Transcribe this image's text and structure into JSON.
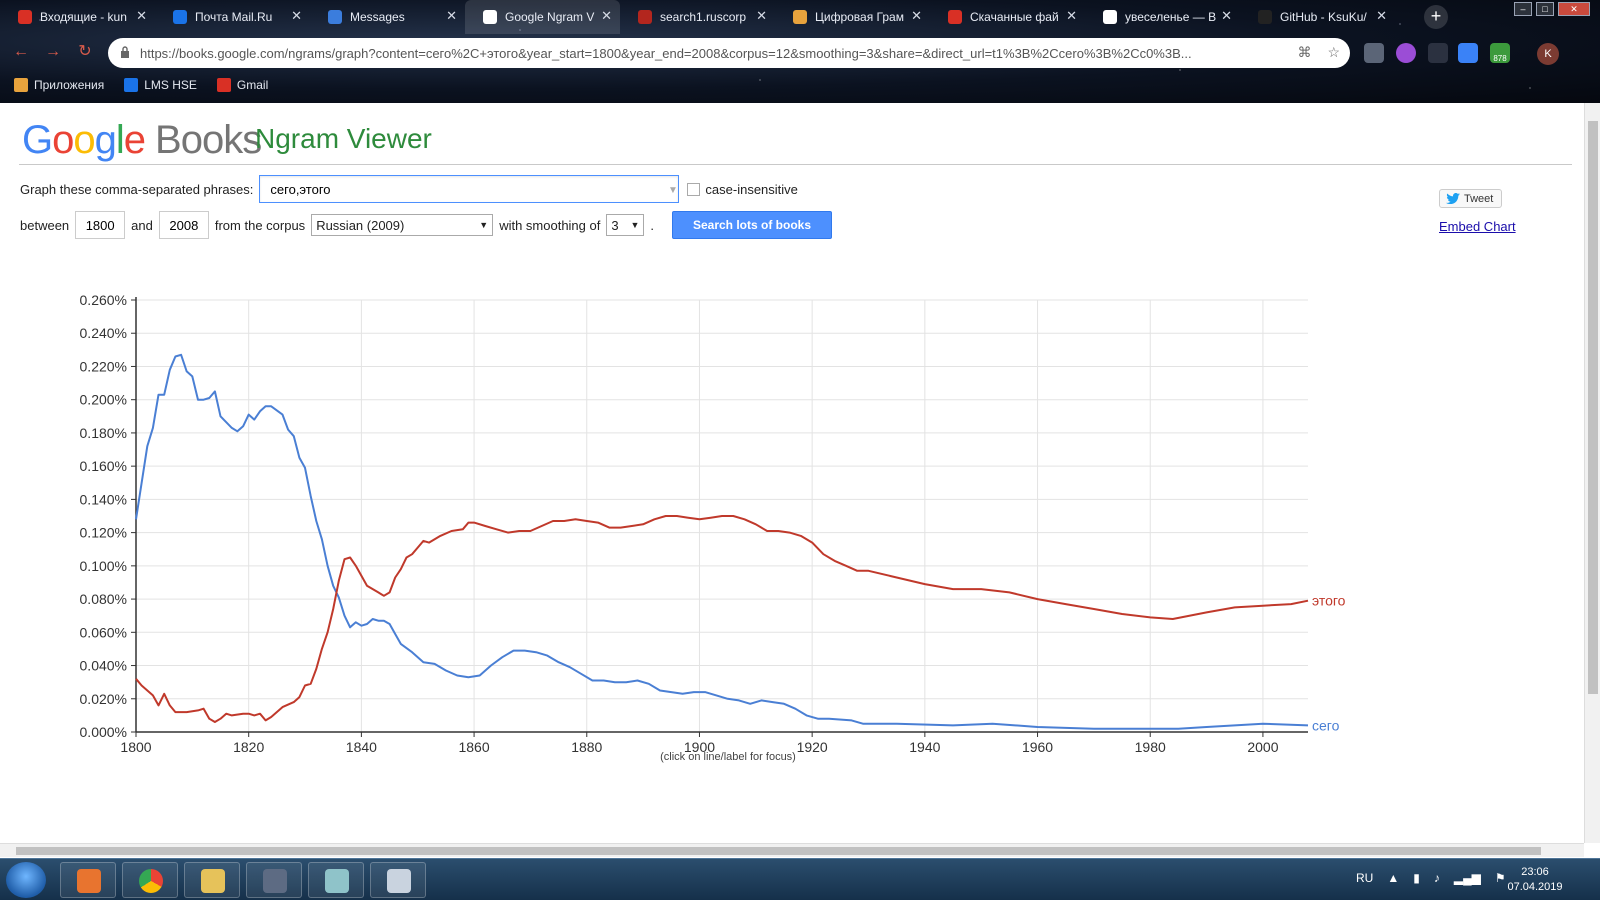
{
  "browser": {
    "tabs": [
      {
        "label": "Входящие - kun",
        "color": "#d93025"
      },
      {
        "label": "Почта Mail.Ru",
        "color": "#1a73e8"
      },
      {
        "label": "Messages",
        "color": "#3b7ddd"
      },
      {
        "label": "Google Ngram V",
        "color": "#ffffff",
        "active": true
      },
      {
        "label": "search1.ruscorp",
        "color": "#b3261e"
      },
      {
        "label": "Цифровая Грам",
        "color": "#e8a33d"
      },
      {
        "label": "Скачанные фай",
        "color": "#d93025"
      },
      {
        "label": "увеселенье — В",
        "color": "#ffffff"
      },
      {
        "label": "GitHub - KsuKu/",
        "color": "#222222"
      }
    ],
    "url": "https://books.google.com/ngrams/graph?content=сего%2C+этого&year_start=1800&year_end=2008&corpus=12&smoothing=3&share=&direct_url=t1%3B%2Ccero%3B%2Cc0%3B...",
    "bookmarks": [
      {
        "label": "Приложения",
        "color": "#e8a33d"
      },
      {
        "label": "LMS HSE",
        "color": "#1a73e8"
      },
      {
        "label": "Gmail",
        "color": "#d93025"
      }
    ],
    "avatar_letter": "K",
    "badge": "878"
  },
  "header": {
    "logo_google": [
      "G",
      "o",
      "o",
      "g",
      "l",
      "e"
    ],
    "logo_books": "Books",
    "title": "Ngram Viewer"
  },
  "form": {
    "phrases_label": "Graph these comma-separated phrases:",
    "phrases_value": "сего,этого",
    "case_label": "case-insensitive",
    "between_label": "between",
    "year_start": "1800",
    "and_label": "and",
    "year_end": "2008",
    "corpus_label": "from the corpus",
    "corpus_value": "Russian (2009)",
    "smoothing_label": "with smoothing of",
    "smoothing_value": "3",
    "search_button": "Search lots of books"
  },
  "side": {
    "tweet": "Tweet",
    "embed": "Embed Chart"
  },
  "chart_caption": "(click on line/label for focus)",
  "chart_data": {
    "type": "line",
    "x_range": [
      1800,
      2008
    ],
    "ylim": [
      0,
      0.26
    ],
    "y_ticks": [
      "0.000%",
      "0.020%",
      "0.040%",
      "0.060%",
      "0.080%",
      "0.100%",
      "0.120%",
      "0.140%",
      "0.160%",
      "0.180%",
      "0.200%",
      "0.220%",
      "0.240%",
      "0.260%"
    ],
    "x_ticks": [
      "1800",
      "1820",
      "1840",
      "1860",
      "1880",
      "1900",
      "1920",
      "1940",
      "1960",
      "1980",
      "2000"
    ],
    "grid": true,
    "series": [
      {
        "name": "сего",
        "color": "#4a7fd4",
        "points": [
          [
            1800,
            0.128
          ],
          [
            1802,
            0.172
          ],
          [
            1803,
            0.183
          ],
          [
            1804,
            0.203
          ],
          [
            1805,
            0.203
          ],
          [
            1806,
            0.218
          ],
          [
            1807,
            0.226
          ],
          [
            1808,
            0.227
          ],
          [
            1809,
            0.217
          ],
          [
            1810,
            0.214
          ],
          [
            1811,
            0.2
          ],
          [
            1812,
            0.2
          ],
          [
            1813,
            0.201
          ],
          [
            1814,
            0.205
          ],
          [
            1815,
            0.19
          ],
          [
            1817,
            0.183
          ],
          [
            1818,
            0.181
          ],
          [
            1819,
            0.184
          ],
          [
            1820,
            0.191
          ],
          [
            1821,
            0.188
          ],
          [
            1822,
            0.193
          ],
          [
            1823,
            0.196
          ],
          [
            1824,
            0.196
          ],
          [
            1826,
            0.191
          ],
          [
            1827,
            0.182
          ],
          [
            1828,
            0.178
          ],
          [
            1829,
            0.165
          ],
          [
            1830,
            0.159
          ],
          [
            1831,
            0.142
          ],
          [
            1832,
            0.127
          ],
          [
            1833,
            0.116
          ],
          [
            1834,
            0.1
          ],
          [
            1835,
            0.088
          ],
          [
            1836,
            0.081
          ],
          [
            1837,
            0.07
          ],
          [
            1838,
            0.063
          ],
          [
            1839,
            0.066
          ],
          [
            1840,
            0.064
          ],
          [
            1841,
            0.065
          ],
          [
            1842,
            0.068
          ],
          [
            1843,
            0.067
          ],
          [
            1844,
            0.067
          ],
          [
            1845,
            0.065
          ],
          [
            1846,
            0.059
          ],
          [
            1847,
            0.053
          ],
          [
            1849,
            0.048
          ],
          [
            1851,
            0.042
          ],
          [
            1853,
            0.041
          ],
          [
            1855,
            0.037
          ],
          [
            1857,
            0.034
          ],
          [
            1859,
            0.033
          ],
          [
            1861,
            0.034
          ],
          [
            1863,
            0.04
          ],
          [
            1865,
            0.045
          ],
          [
            1867,
            0.049
          ],
          [
            1869,
            0.049
          ],
          [
            1871,
            0.048
          ],
          [
            1873,
            0.046
          ],
          [
            1875,
            0.042
          ],
          [
            1877,
            0.039
          ],
          [
            1879,
            0.035
          ],
          [
            1881,
            0.031
          ],
          [
            1883,
            0.031
          ],
          [
            1885,
            0.03
          ],
          [
            1887,
            0.03
          ],
          [
            1889,
            0.031
          ],
          [
            1891,
            0.029
          ],
          [
            1893,
            0.025
          ],
          [
            1895,
            0.024
          ],
          [
            1897,
            0.023
          ],
          [
            1899,
            0.024
          ],
          [
            1901,
            0.024
          ],
          [
            1903,
            0.022
          ],
          [
            1905,
            0.02
          ],
          [
            1907,
            0.019
          ],
          [
            1909,
            0.017
          ],
          [
            1911,
            0.019
          ],
          [
            1913,
            0.018
          ],
          [
            1915,
            0.017
          ],
          [
            1917,
            0.014
          ],
          [
            1919,
            0.01
          ],
          [
            1921,
            0.008
          ],
          [
            1923,
            0.008
          ],
          [
            1927,
            0.007
          ],
          [
            1929,
            0.005
          ],
          [
            1935,
            0.005
          ],
          [
            1945,
            0.004
          ],
          [
            1952,
            0.005
          ],
          [
            1960,
            0.003
          ],
          [
            1970,
            0.002
          ],
          [
            1985,
            0.002
          ],
          [
            1990,
            0.003
          ],
          [
            2000,
            0.005
          ],
          [
            2008,
            0.004
          ]
        ]
      },
      {
        "name": "этого",
        "color": "#c0392b",
        "points": [
          [
            1800,
            0.032
          ],
          [
            1801,
            0.028
          ],
          [
            1803,
            0.022
          ],
          [
            1804,
            0.016
          ],
          [
            1805,
            0.023
          ],
          [
            1806,
            0.016
          ],
          [
            1807,
            0.012
          ],
          [
            1809,
            0.012
          ],
          [
            1811,
            0.013
          ],
          [
            1812,
            0.014
          ],
          [
            1813,
            0.008
          ],
          [
            1814,
            0.006
          ],
          [
            1815,
            0.008
          ],
          [
            1816,
            0.011
          ],
          [
            1817,
            0.01
          ],
          [
            1819,
            0.011
          ],
          [
            1820,
            0.011
          ],
          [
            1821,
            0.01
          ],
          [
            1822,
            0.011
          ],
          [
            1823,
            0.007
          ],
          [
            1824,
            0.009
          ],
          [
            1826,
            0.015
          ],
          [
            1828,
            0.018
          ],
          [
            1829,
            0.021
          ],
          [
            1830,
            0.028
          ],
          [
            1831,
            0.029
          ],
          [
            1832,
            0.038
          ],
          [
            1833,
            0.05
          ],
          [
            1834,
            0.06
          ],
          [
            1835,
            0.074
          ],
          [
            1836,
            0.091
          ],
          [
            1837,
            0.104
          ],
          [
            1838,
            0.105
          ],
          [
            1839,
            0.1
          ],
          [
            1840,
            0.094
          ],
          [
            1841,
            0.088
          ],
          [
            1843,
            0.084
          ],
          [
            1844,
            0.082
          ],
          [
            1845,
            0.084
          ],
          [
            1846,
            0.093
          ],
          [
            1847,
            0.098
          ],
          [
            1848,
            0.105
          ],
          [
            1849,
            0.107
          ],
          [
            1850,
            0.111
          ],
          [
            1851,
            0.115
          ],
          [
            1852,
            0.114
          ],
          [
            1854,
            0.118
          ],
          [
            1856,
            0.121
          ],
          [
            1858,
            0.122
          ],
          [
            1859,
            0.126
          ],
          [
            1860,
            0.126
          ],
          [
            1862,
            0.124
          ],
          [
            1864,
            0.122
          ],
          [
            1866,
            0.12
          ],
          [
            1868,
            0.121
          ],
          [
            1870,
            0.121
          ],
          [
            1872,
            0.124
          ],
          [
            1874,
            0.127
          ],
          [
            1876,
            0.127
          ],
          [
            1878,
            0.128
          ],
          [
            1880,
            0.127
          ],
          [
            1882,
            0.126
          ],
          [
            1884,
            0.123
          ],
          [
            1886,
            0.123
          ],
          [
            1888,
            0.124
          ],
          [
            1890,
            0.125
          ],
          [
            1892,
            0.128
          ],
          [
            1894,
            0.13
          ],
          [
            1896,
            0.13
          ],
          [
            1898,
            0.129
          ],
          [
            1900,
            0.128
          ],
          [
            1902,
            0.129
          ],
          [
            1904,
            0.13
          ],
          [
            1906,
            0.13
          ],
          [
            1908,
            0.128
          ],
          [
            1910,
            0.125
          ],
          [
            1912,
            0.121
          ],
          [
            1914,
            0.121
          ],
          [
            1916,
            0.12
          ],
          [
            1918,
            0.118
          ],
          [
            1920,
            0.114
          ],
          [
            1922,
            0.107
          ],
          [
            1924,
            0.103
          ],
          [
            1926,
            0.1
          ],
          [
            1928,
            0.097
          ],
          [
            1930,
            0.097
          ],
          [
            1935,
            0.093
          ],
          [
            1940,
            0.089
          ],
          [
            1945,
            0.086
          ],
          [
            1950,
            0.086
          ],
          [
            1955,
            0.084
          ],
          [
            1960,
            0.08
          ],
          [
            1965,
            0.077
          ],
          [
            1970,
            0.074
          ],
          [
            1975,
            0.071
          ],
          [
            1980,
            0.069
          ],
          [
            1984,
            0.068
          ],
          [
            1990,
            0.072
          ],
          [
            1995,
            0.075
          ],
          [
            2000,
            0.076
          ],
          [
            2005,
            0.077
          ],
          [
            2008,
            0.079
          ]
        ]
      }
    ]
  },
  "taskbar": {
    "lang": "RU",
    "time": "23:06",
    "date": "07.04.2019"
  }
}
